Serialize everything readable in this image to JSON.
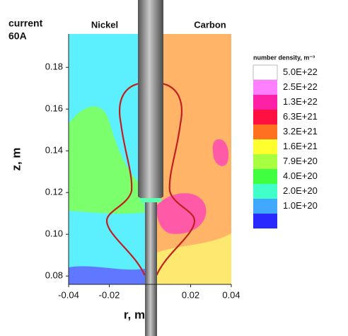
{
  "chart_data": {
    "type": "contour",
    "title": "current",
    "subtitle": "60A",
    "annotations": [
      "Nickel",
      "Carbon"
    ],
    "x_label": "r, m",
    "y_label": "z, m",
    "xlim": [
      -0.04,
      0.04
    ],
    "ylim": [
      0.076,
      0.196
    ],
    "xticks": [
      -0.04,
      -0.02,
      0.02,
      0.04
    ],
    "yticks": [
      0.08,
      {
        "value": 0.1,
        "label": "0.10"
      },
      0.12,
      0.14,
      0.16,
      0.18
    ],
    "legend_title": "number density, m⁻³",
    "levels": [
      {
        "value": 5e+22,
        "label": "5.0E+22"
      },
      {
        "value": 2.5e+22,
        "label": "2.5E+22"
      },
      {
        "value": 1.3e+22,
        "label": "1.3E+22"
      },
      {
        "value": 6.3e+21,
        "label": "6.3E+21"
      },
      {
        "value": 3.2e+21,
        "label": "3.2E+21"
      },
      {
        "value": 1.6e+21,
        "label": "1.6E+21"
      },
      {
        "value": 7.9e+20,
        "label": "7.9E+20"
      },
      {
        "value": 4e+20,
        "label": "4.0E+20"
      },
      {
        "value": 2e+20,
        "label": "2.0E+20"
      },
      {
        "value": 1e+20,
        "label": "1.0E+20"
      }
    ],
    "colors": [
      "#ffffff",
      "#ff80ff",
      "#ff20a8",
      "#ff1040",
      "#ff7020",
      "#ffff30",
      "#a8ff40",
      "#40ff40",
      "#40ffc8",
      "#40a8ff",
      "#2828ff"
    ]
  }
}
